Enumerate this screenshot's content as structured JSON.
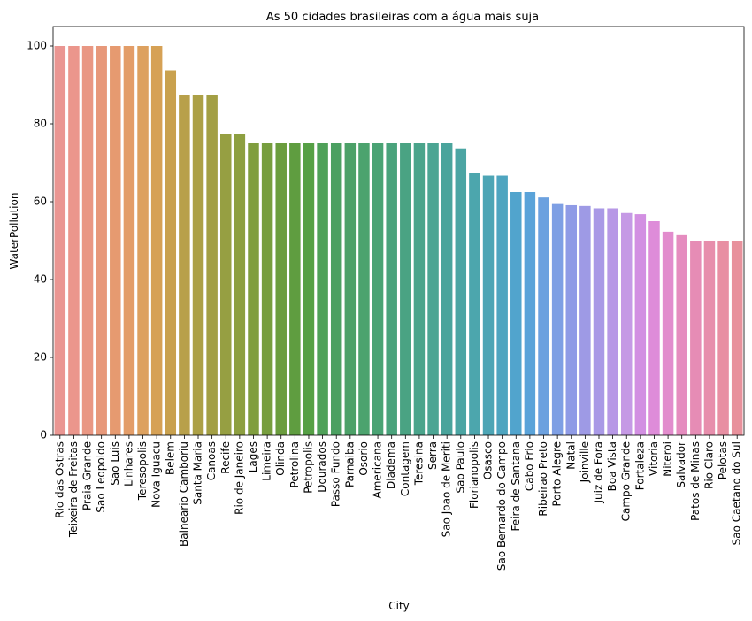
{
  "chart_data": {
    "type": "bar",
    "title": "As 50 cidades brasileiras com a água mais suja",
    "xlabel": "City",
    "ylabel": "WaterPollution",
    "ylim": [
      0,
      105
    ],
    "yticks": [
      0,
      20,
      40,
      60,
      80,
      100
    ],
    "grid": false,
    "categories": [
      "Rio das Ostras",
      "Teixeira de Freitas",
      "Praia Grande",
      "Sao Leopoldo",
      "Sao Luis",
      "Linhares",
      "Teresopolis",
      "Nova Iguacu",
      "Belem",
      "Balneario Camboriu",
      "Santa Maria",
      "Canoas",
      "Recife",
      "Rio de Janeiro",
      "Lages",
      "Limeira",
      "Olinda",
      "Petrolina",
      "Petropolis",
      "Dourados",
      "Passo Fundo",
      "Parnaiba",
      "Osorio",
      "Americana",
      "Diadema",
      "Contagem",
      "Teresina",
      "Serra",
      "Sao Joao de Meriti",
      "Sao Paulo",
      "Florianopolis",
      "Osasco",
      "Sao Bernardo do Campo",
      "Feira de Santana",
      "Cabo Frio",
      "Ribeirao Preto",
      "Porto Alegre",
      "Natal",
      "Joinville",
      "Juiz de Fora",
      "Boa Vista",
      "Campo Grande",
      "Fortaleza",
      "Vitoria",
      "Niteroi",
      "Salvador",
      "Patos de Minas",
      "Rio Claro",
      "Pelotas",
      "Sao Caetano do Sul"
    ],
    "values": [
      100,
      100,
      100,
      100,
      100,
      100,
      100,
      100,
      93.75,
      87.5,
      87.5,
      87.5,
      77.3,
      77.3,
      75,
      75,
      75,
      75,
      75,
      75,
      75,
      75,
      75,
      75,
      75,
      75,
      75,
      75,
      75,
      73.7,
      67.3,
      66.7,
      66.7,
      62.5,
      62.5,
      61.1,
      59.4,
      59.1,
      58.9,
      58.3,
      58.3,
      57.1,
      56.8,
      55.0,
      52.3,
      51.4,
      50,
      50,
      50,
      50
    ],
    "colors": [
      "#ea9692",
      "#eb968c",
      "#e99783",
      "#e7987a",
      "#e69a70",
      "#e39d68",
      "#dda15f",
      "#d6a155",
      "#c9a14e",
      "#b8a04a",
      "#aca046",
      "#a39f44",
      "#969f42",
      "#8d9f40",
      "#809e3e",
      "#779e3e",
      "#6b9d3e",
      "#5f9d40",
      "#56a045",
      "#4fa159",
      "#4ba061",
      "#4ca168",
      "#4ca36e",
      "#4aa374",
      "#4aa37c",
      "#4aa383",
      "#4aa48b",
      "#4ba593",
      "#4aa49c",
      "#4ba5a3",
      "#4ca6ad",
      "#4da5b5",
      "#4ea5c0",
      "#51a4cd",
      "#5aa3d9",
      "#6ca1df",
      "#7e9fe4",
      "#8f9be6",
      "#9e9ae5",
      "#a999e6",
      "#b798e6",
      "#c599e5",
      "#d28fe2",
      "#de8cd9",
      "#e28ccd",
      "#e58cbf",
      "#e68cb5",
      "#e78eac",
      "#e88fa3",
      "#e8919c"
    ]
  }
}
